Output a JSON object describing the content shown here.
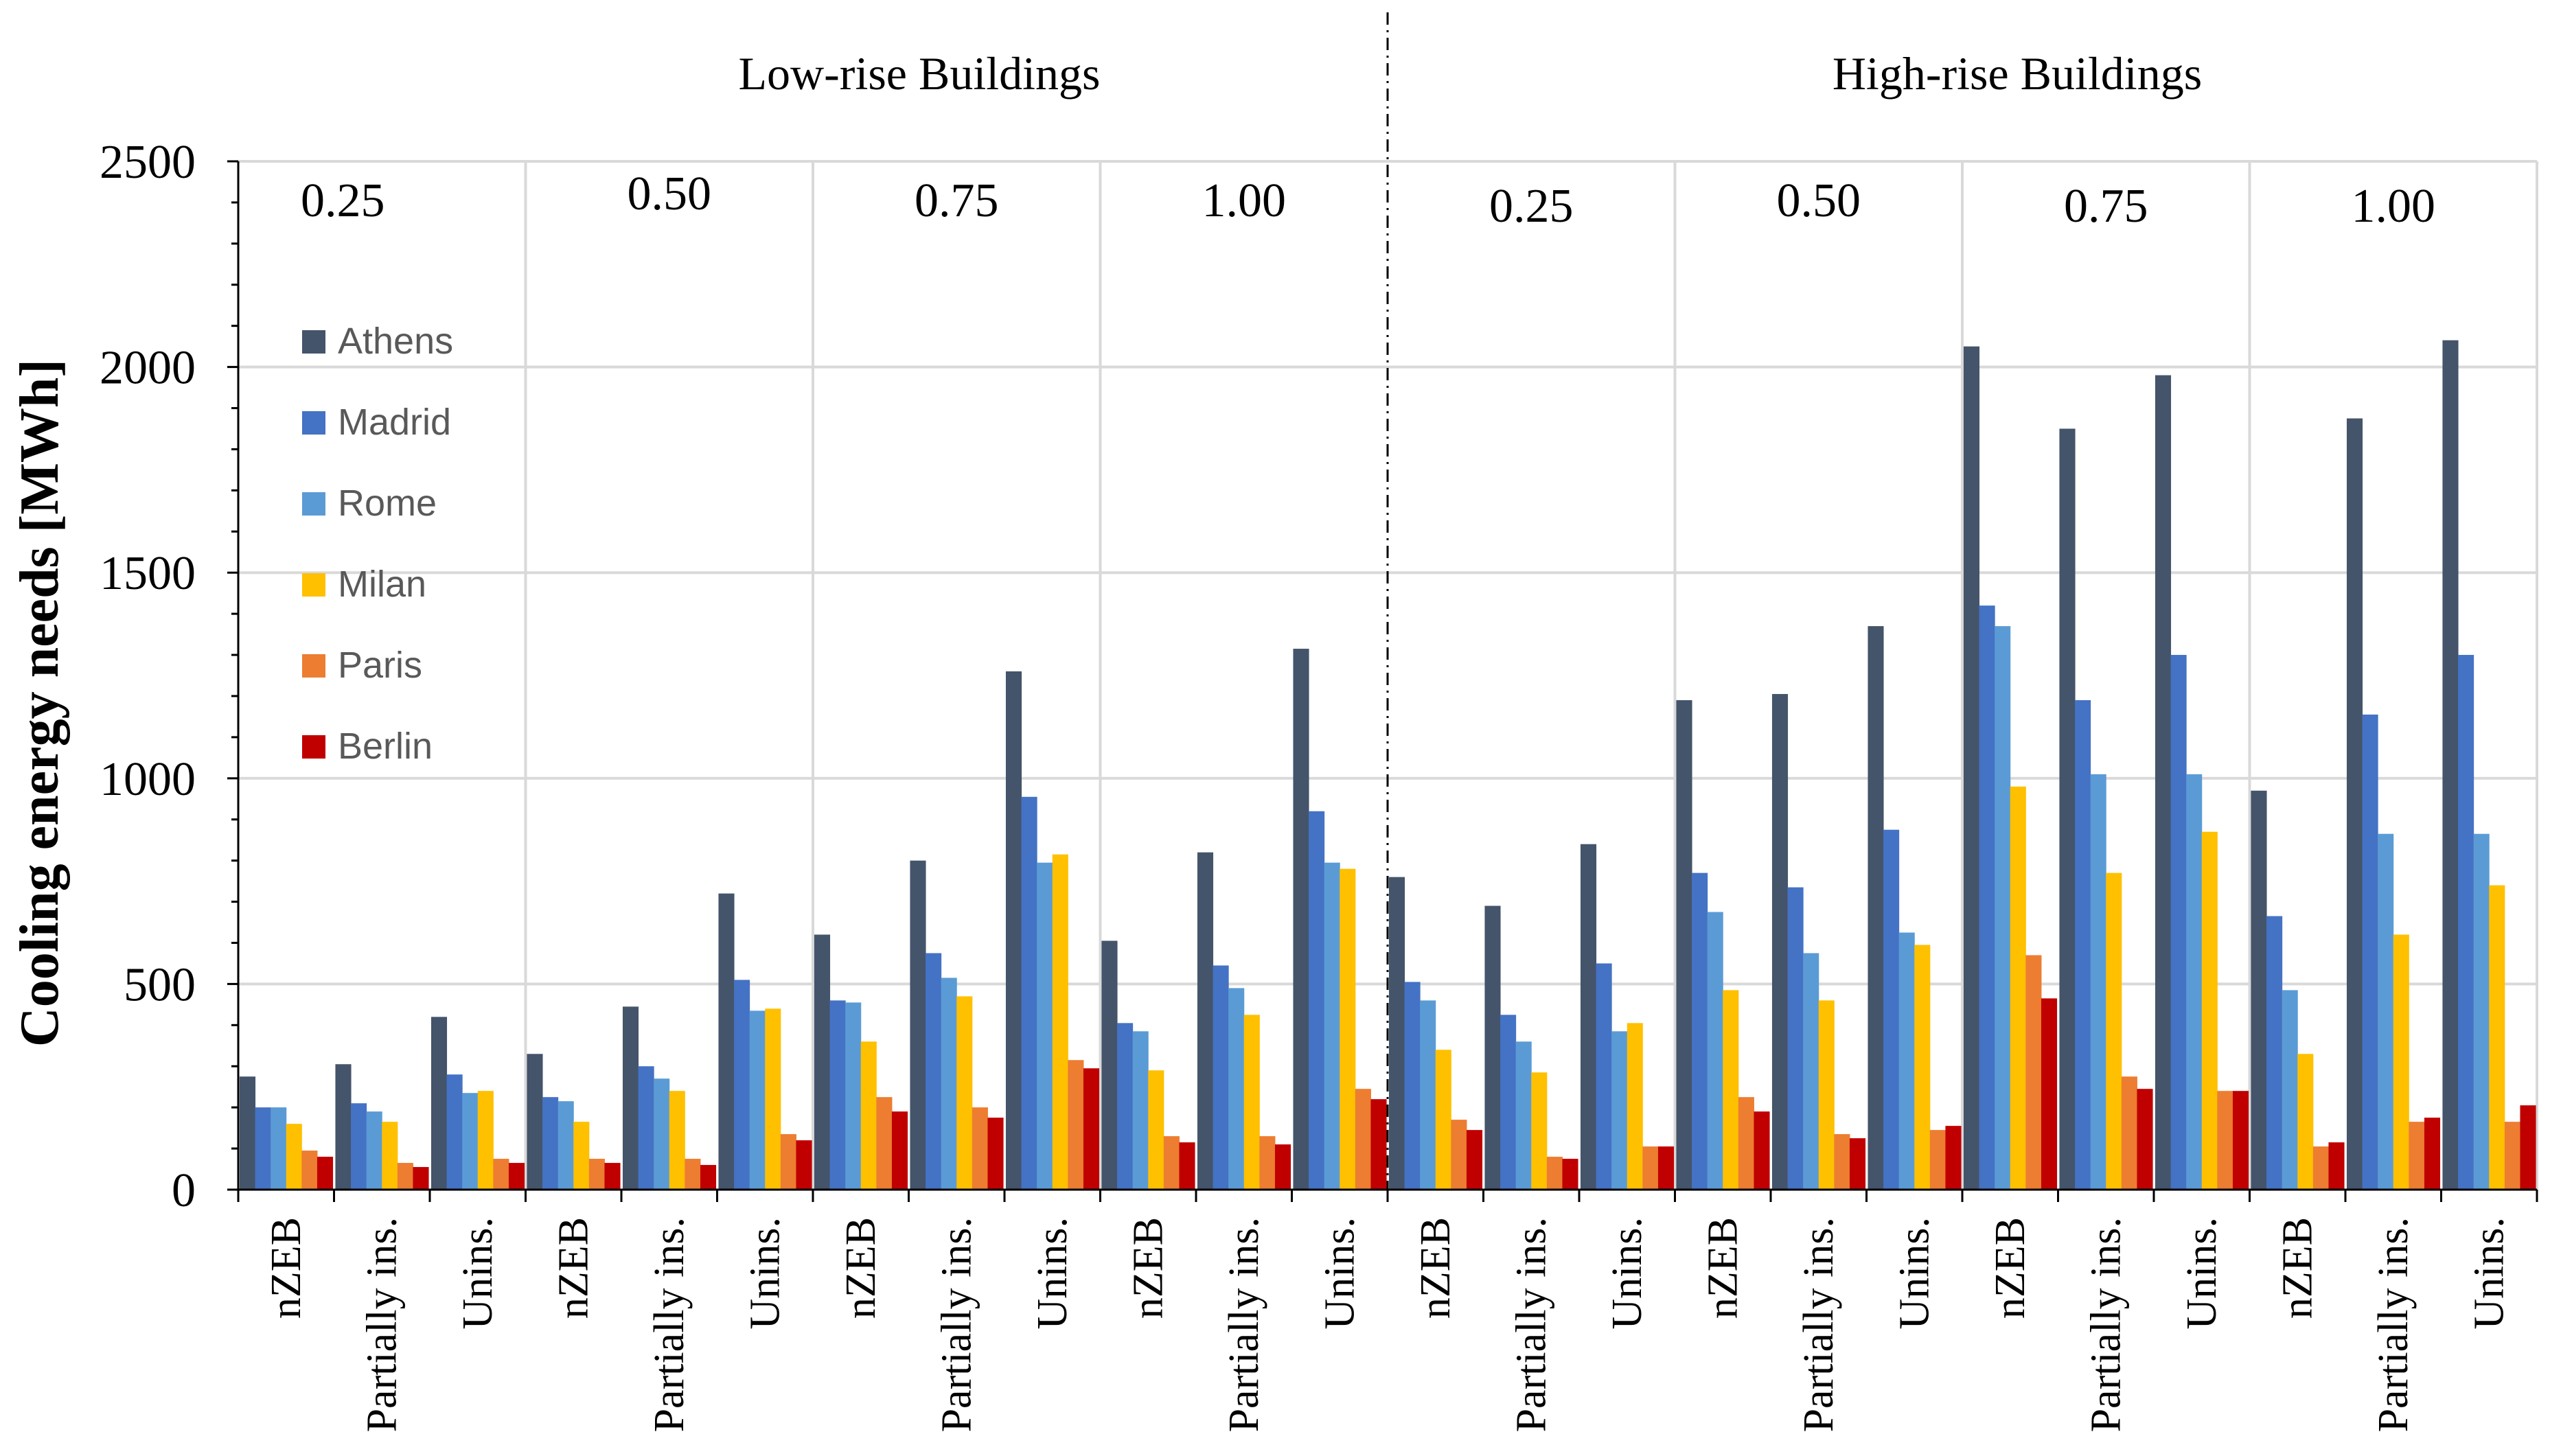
{
  "chart_data": {
    "type": "bar",
    "ylabel": "Cooling energy needs [MWh]",
    "xlabel": "",
    "ylim": [
      0,
      2500
    ],
    "yticks": [
      0,
      500,
      1000,
      1500,
      2000,
      2500
    ],
    "grid": true,
    "legend_position": "top-left",
    "group_titles": [
      "Low-rise Buildings",
      "High-rise Buildings"
    ],
    "subgroup_labels": [
      "0.25",
      "0.50",
      "0.75",
      "1.00",
      "0.25",
      "0.50",
      "0.75",
      "1.00"
    ],
    "categories": [
      "nZEB",
      "Partially ins.",
      "Unins.",
      "nZEB",
      "Partially ins.",
      "Unins.",
      "nZEB",
      "Partially ins.",
      "Unins.",
      "nZEB",
      "Partially ins.",
      "Unins.",
      "nZEB",
      "Partially ins.",
      "Unins.",
      "nZEB",
      "Partially ins.",
      "Unins.",
      "nZEB",
      "Partially ins.",
      "Unins.",
      "nZEB",
      "Partially ins.",
      "Unins."
    ],
    "series": [
      {
        "name": "Athens",
        "color": "#44546a",
        "values": [
          275,
          305,
          420,
          330,
          445,
          720,
          620,
          800,
          1260,
          605,
          820,
          1315,
          760,
          690,
          840,
          1190,
          1205,
          1370,
          2050,
          1850,
          1980,
          970,
          1875,
          2065
        ]
      },
      {
        "name": "Madrid",
        "color": "#4472c4",
        "values": [
          200,
          210,
          280,
          225,
          300,
          510,
          460,
          575,
          955,
          405,
          545,
          920,
          505,
          425,
          550,
          770,
          735,
          875,
          1420,
          1190,
          1300,
          665,
          1155,
          1300
        ]
      },
      {
        "name": "Rome",
        "color": "#5b9bd5",
        "values": [
          200,
          190,
          235,
          215,
          270,
          435,
          455,
          515,
          795,
          385,
          490,
          795,
          460,
          360,
          385,
          675,
          575,
          625,
          1370,
          1010,
          1010,
          485,
          865,
          865
        ]
      },
      {
        "name": "Milan",
        "color": "#ffc000",
        "values": [
          160,
          165,
          240,
          165,
          240,
          440,
          360,
          470,
          815,
          290,
          425,
          780,
          340,
          285,
          405,
          485,
          460,
          595,
          980,
          770,
          870,
          330,
          620,
          740
        ]
      },
      {
        "name": "Paris",
        "color": "#ed7d31",
        "values": [
          95,
          65,
          75,
          75,
          75,
          135,
          225,
          200,
          315,
          130,
          130,
          245,
          170,
          80,
          105,
          225,
          135,
          145,
          570,
          275,
          240,
          105,
          165,
          165
        ]
      },
      {
        "name": "Berlin",
        "color": "#c00000",
        "values": [
          80,
          55,
          65,
          65,
          60,
          120,
          190,
          175,
          295,
          115,
          110,
          220,
          145,
          75,
          105,
          190,
          125,
          155,
          465,
          245,
          240,
          115,
          175,
          205
        ]
      }
    ]
  }
}
